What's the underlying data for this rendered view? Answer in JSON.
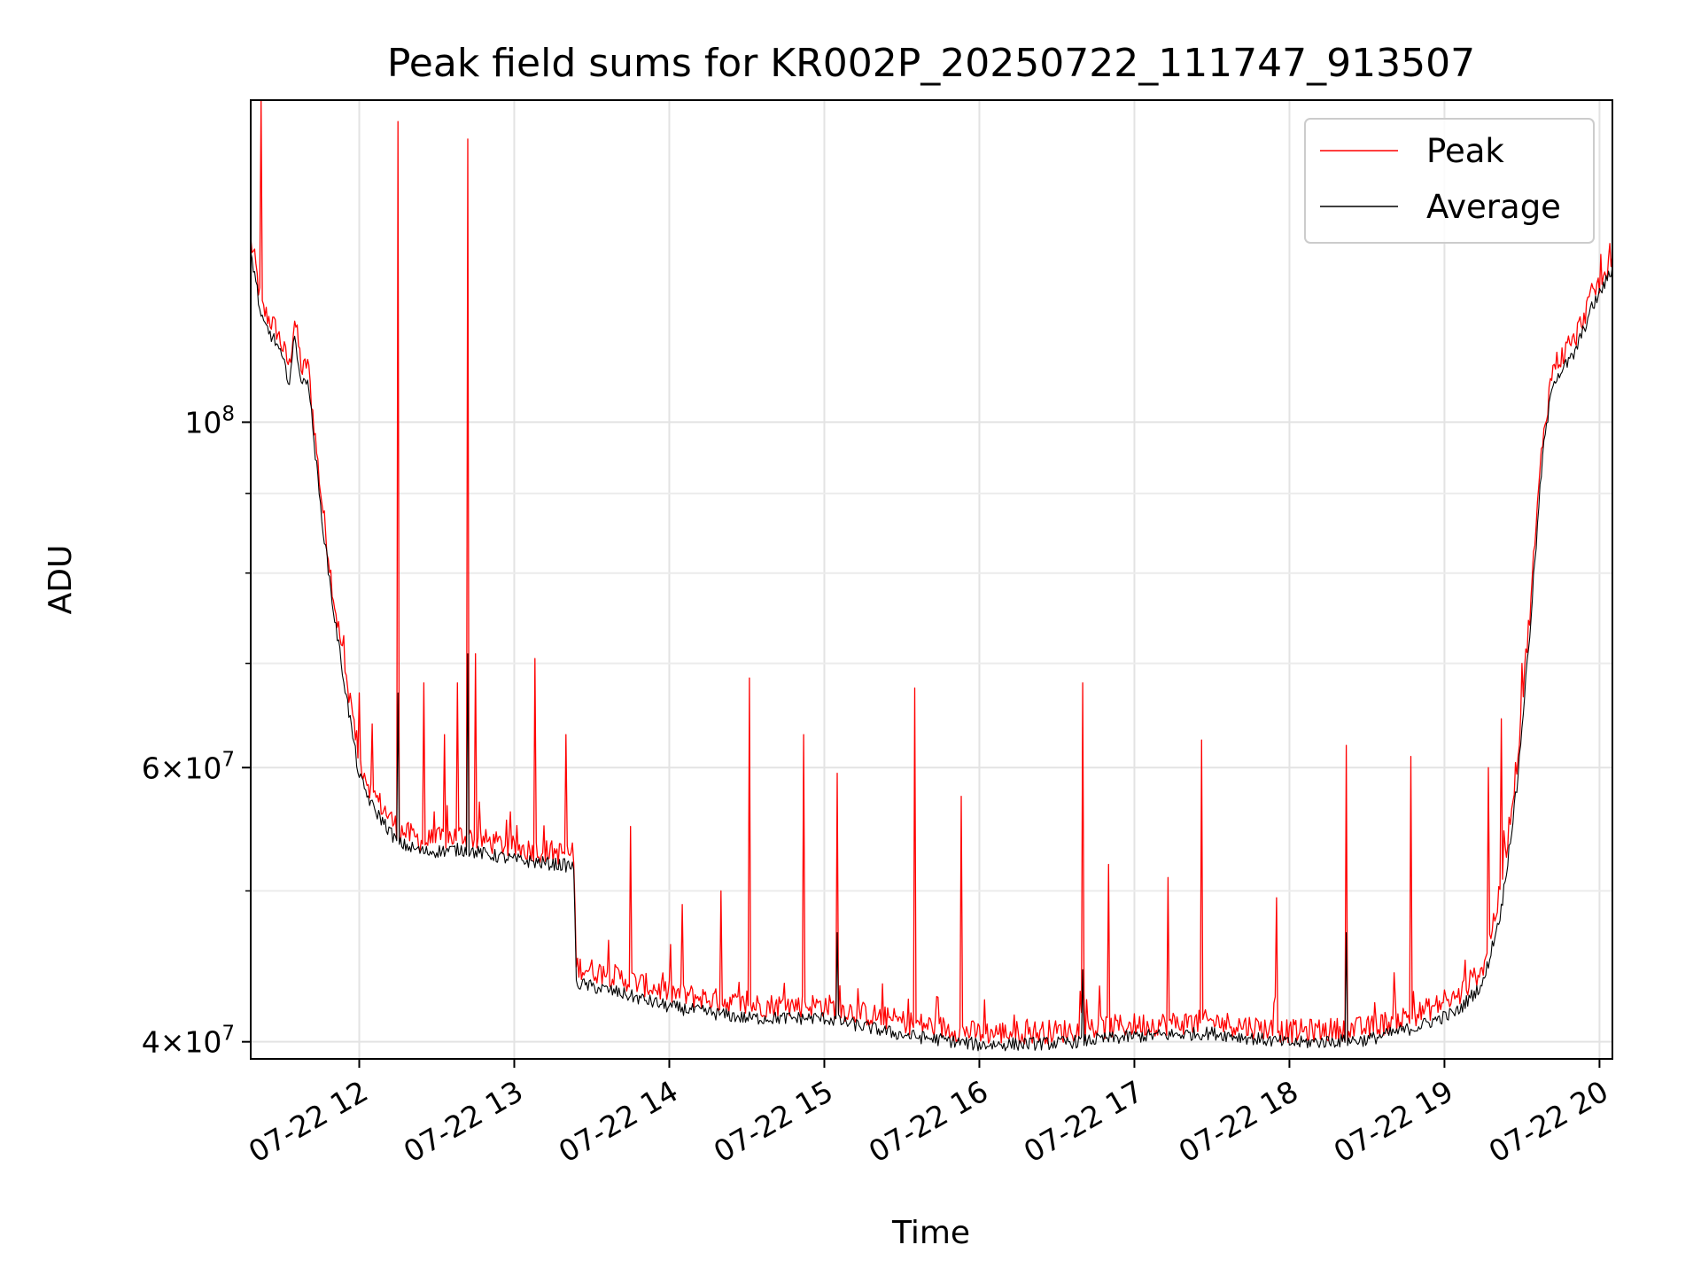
{
  "chart_data": {
    "type": "line",
    "title": "Peak field sums for KR002P_20250722_111747_913507",
    "xlabel": "Time",
    "ylabel": "ADU",
    "x_range": [
      "2025-07-22 11:18",
      "2025-07-22 20:05"
    ],
    "y_scale": "log",
    "ylim": [
      39000000,
      161000000
    ],
    "grid": true,
    "legend_position": "upper right",
    "x_ticks": [
      "07-22 12",
      "07-22 13",
      "07-22 14",
      "07-22 15",
      "07-22 16",
      "07-22 17",
      "07-22 18",
      "07-22 19",
      "07-22 20"
    ],
    "y_ticks": [
      {
        "value": 100000000,
        "mantissa": "",
        "base": "10",
        "exp": "8"
      },
      {
        "value": 60000000,
        "mantissa": "6",
        "base": "10",
        "exp": "7"
      },
      {
        "value": 40000000,
        "mantissa": "4",
        "base": "10",
        "exp": "7"
      }
    ],
    "y_minor_ticks": [
      50000000,
      70000000,
      80000000,
      90000000
    ],
    "series": [
      {
        "name": "Peak",
        "color": "#ff0000",
        "baseline": [
          [
            "2025-07-22 11:18",
            130000000
          ],
          [
            "2025-07-22 11:20",
            125000000
          ],
          [
            "2025-07-22 11:22",
            118000000
          ],
          [
            "2025-07-22 11:28",
            114000000
          ],
          [
            "2025-07-22 11:33",
            108000000
          ],
          [
            "2025-07-22 11:35",
            116000000
          ],
          [
            "2025-07-22 11:38",
            107000000
          ],
          [
            "2025-07-22 11:40",
            109000000
          ],
          [
            "2025-07-22 11:45",
            90000000
          ],
          [
            "2025-07-22 11:50",
            77000000
          ],
          [
            "2025-07-22 11:55",
            68000000
          ],
          [
            "2025-07-22 12:00",
            60500000
          ],
          [
            "2025-07-22 12:05",
            57500000
          ],
          [
            "2025-07-22 12:10",
            56000000
          ],
          [
            "2025-07-22 12:15",
            54500000
          ],
          [
            "2025-07-22 12:25",
            53500000
          ],
          [
            "2025-07-22 12:40",
            54000000
          ],
          [
            "2025-07-22 13:00",
            53000000
          ],
          [
            "2025-07-22 13:23",
            52500000
          ],
          [
            "2025-07-22 13:24",
            44500000
          ],
          [
            "2025-07-22 13:40",
            43800000
          ],
          [
            "2025-07-22 14:00",
            42800000
          ],
          [
            "2025-07-22 14:30",
            42000000
          ],
          [
            "2025-07-22 15:00",
            42000000
          ],
          [
            "2025-07-22 15:30",
            41000000
          ],
          [
            "2025-07-22 16:00",
            40300000
          ],
          [
            "2025-07-22 16:30",
            40400000
          ],
          [
            "2025-07-22 17:00",
            40800000
          ],
          [
            "2025-07-22 17:30",
            41000000
          ],
          [
            "2025-07-22 18:00",
            40400000
          ],
          [
            "2025-07-22 18:30",
            40600000
          ],
          [
            "2025-07-22 18:50",
            41500000
          ],
          [
            "2025-07-22 19:05",
            42500000
          ],
          [
            "2025-07-22 19:15",
            44500000
          ],
          [
            "2025-07-22 19:22",
            50000000
          ],
          [
            "2025-07-22 19:28",
            60000000
          ],
          [
            "2025-07-22 19:33",
            75000000
          ],
          [
            "2025-07-22 19:38",
            97000000
          ],
          [
            "2025-07-22 19:42",
            108000000
          ],
          [
            "2025-07-22 19:50",
            112000000
          ],
          [
            "2025-07-22 19:57",
            120000000
          ],
          [
            "2025-07-22 20:05",
            126000000
          ]
        ],
        "spikes": [
          [
            "2025-07-22 11:22",
            161000000
          ],
          [
            "2025-07-22 12:15",
            156000000
          ],
          [
            "2025-07-22 12:42",
            152000000
          ],
          [
            "2025-07-22 11:57",
            66000000
          ],
          [
            "2025-07-22 12:00",
            67000000
          ],
          [
            "2025-07-22 12:05",
            64000000
          ],
          [
            "2025-07-22 12:25",
            68000000
          ],
          [
            "2025-07-22 12:33",
            63000000
          ],
          [
            "2025-07-22 12:38",
            68000000
          ],
          [
            "2025-07-22 12:45",
            71000000
          ],
          [
            "2025-07-22 13:08",
            70500000
          ],
          [
            "2025-07-22 13:20",
            63000000
          ],
          [
            "2025-07-22 13:45",
            55000000
          ],
          [
            "2025-07-22 14:05",
            49000000
          ],
          [
            "2025-07-22 14:20",
            50000000
          ],
          [
            "2025-07-22 14:31",
            68500000
          ],
          [
            "2025-07-22 14:52",
            63000000
          ],
          [
            "2025-07-22 15:05",
            59500000
          ],
          [
            "2025-07-22 15:35",
            67500000
          ],
          [
            "2025-07-22 15:53",
            57500000
          ],
          [
            "2025-07-22 16:40",
            68000000
          ],
          [
            "2025-07-22 16:50",
            52000000
          ],
          [
            "2025-07-22 17:13",
            51000000
          ],
          [
            "2025-07-22 17:26",
            62500000
          ],
          [
            "2025-07-22 17:55",
            49500000
          ],
          [
            "2025-07-22 18:22",
            62000000
          ],
          [
            "2025-07-22 18:47",
            61000000
          ],
          [
            "2025-07-22 19:17",
            60000000
          ],
          [
            "2025-07-22 19:22",
            64500000
          ],
          [
            "2025-07-22 19:30",
            70000000
          ]
        ]
      },
      {
        "name": "Average",
        "color": "#000000",
        "baseline": [
          [
            "2025-07-22 11:18",
            128000000
          ],
          [
            "2025-07-22 11:20",
            123000000
          ],
          [
            "2025-07-22 11:22",
            116000000
          ],
          [
            "2025-07-22 11:28",
            112000000
          ],
          [
            "2025-07-22 11:33",
            106000000
          ],
          [
            "2025-07-22 11:35",
            113000000
          ],
          [
            "2025-07-22 11:38",
            105000000
          ],
          [
            "2025-07-22 11:40",
            107000000
          ],
          [
            "2025-07-22 11:45",
            88000000
          ],
          [
            "2025-07-22 11:50",
            75500000
          ],
          [
            "2025-07-22 11:55",
            66500000
          ],
          [
            "2025-07-22 12:00",
            59000000
          ],
          [
            "2025-07-22 12:05",
            56500000
          ],
          [
            "2025-07-22 12:10",
            55000000
          ],
          [
            "2025-07-22 12:15",
            53500000
          ],
          [
            "2025-07-22 12:25",
            52800000
          ],
          [
            "2025-07-22 12:40",
            53000000
          ],
          [
            "2025-07-22 13:00",
            52200000
          ],
          [
            "2025-07-22 13:23",
            51700000
          ],
          [
            "2025-07-22 13:24",
            43500000
          ],
          [
            "2025-07-22 13:40",
            42900000
          ],
          [
            "2025-07-22 14:00",
            42000000
          ],
          [
            "2025-07-22 14:30",
            41300000
          ],
          [
            "2025-07-22 15:00",
            41300000
          ],
          [
            "2025-07-22 15:30",
            40300000
          ],
          [
            "2025-07-22 16:00",
            39700000
          ],
          [
            "2025-07-22 16:30",
            39800000
          ],
          [
            "2025-07-22 17:00",
            40200000
          ],
          [
            "2025-07-22 17:30",
            40400000
          ],
          [
            "2025-07-22 18:00",
            39800000
          ],
          [
            "2025-07-22 18:30",
            40000000
          ],
          [
            "2025-07-22 18:50",
            40800000
          ],
          [
            "2025-07-22 19:05",
            41700000
          ],
          [
            "2025-07-22 19:15",
            43500000
          ],
          [
            "2025-07-22 19:22",
            48500000
          ],
          [
            "2025-07-22 19:28",
            58000000
          ],
          [
            "2025-07-22 19:33",
            73000000
          ],
          [
            "2025-07-22 19:38",
            95000000
          ],
          [
            "2025-07-22 19:42",
            106000000
          ],
          [
            "2025-07-22 19:50",
            110000000
          ],
          [
            "2025-07-22 19:57",
            118000000
          ],
          [
            "2025-07-22 20:05",
            125000000
          ]
        ],
        "spikes": [
          [
            "2025-07-22 12:15",
            67000000
          ],
          [
            "2025-07-22 12:42",
            71000000
          ],
          [
            "2025-07-22 18:22",
            47000000
          ],
          [
            "2025-07-22 15:05",
            47000000
          ],
          [
            "2025-07-22 16:40",
            44500000
          ]
        ]
      }
    ]
  }
}
